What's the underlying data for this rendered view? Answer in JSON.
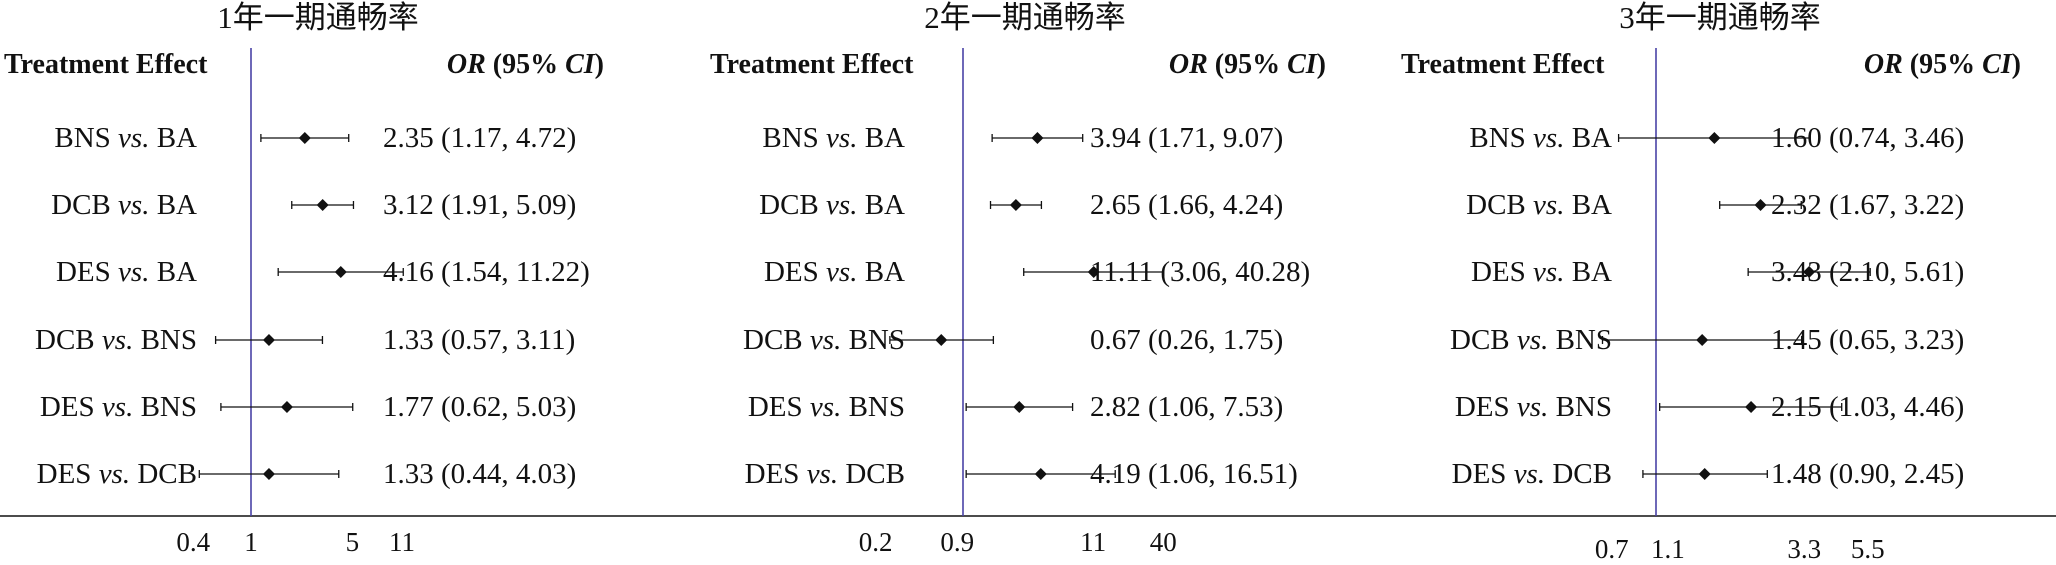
{
  "chart_data": [
    {
      "type": "forest",
      "title": "1年一期通畅率",
      "header_left": "Treatment Effect",
      "header_right": {
        "or": "OR",
        "mid": " (95% ",
        "ci": "CI",
        "end": ")"
      },
      "xscale": "log",
      "xticks": [
        {
          "value": 0.4,
          "label": "0.4"
        },
        {
          "value": 1,
          "label": "1"
        },
        {
          "value": 5,
          "label": "5"
        },
        {
          "value": 11,
          "label": "11"
        }
      ],
      "reference_line": 1,
      "rows": [
        {
          "a": "BNS",
          "b": "BA",
          "or": 2.35,
          "lo": 1.17,
          "hi": 4.72,
          "text": "2.35 (1.17, 4.72)"
        },
        {
          "a": "DCB",
          "b": "BA",
          "or": 3.12,
          "lo": 1.91,
          "hi": 5.09,
          "text": "3.12 (1.91, 5.09)"
        },
        {
          "a": "DES",
          "b": "BA",
          "or": 4.16,
          "lo": 1.54,
          "hi": 11.22,
          "text": "4.16 (1.54, 11.22)"
        },
        {
          "a": "DCB",
          "b": "BNS",
          "or": 1.33,
          "lo": 0.57,
          "hi": 3.11,
          "text": "1.33 (0.57, 3.11)"
        },
        {
          "a": "DES",
          "b": "BNS",
          "or": 1.77,
          "lo": 0.62,
          "hi": 5.03,
          "text": "1.77 (0.62, 5.03)"
        },
        {
          "a": "DES",
          "b": "DCB",
          "or": 1.33,
          "lo": 0.44,
          "hi": 4.03,
          "text": "1.33 (0.44, 4.03)"
        }
      ]
    },
    {
      "type": "forest",
      "title": "2年一期通畅率",
      "header_left": "Treatment Effect",
      "header_right": {
        "or": "OR",
        "mid": " (95% ",
        "ci": "CI",
        "end": ")"
      },
      "xscale": "log",
      "xticks": [
        {
          "value": 0.2,
          "label": "0.2"
        },
        {
          "value": 0.9,
          "label": "0.9"
        },
        {
          "value": 11,
          "label": "11"
        },
        {
          "value": 40,
          "label": "40"
        }
      ],
      "reference_line": 1,
      "rows": [
        {
          "a": "BNS",
          "b": "BA",
          "or": 3.94,
          "lo": 1.71,
          "hi": 9.07,
          "text": "3.94 (1.71, 9.07)"
        },
        {
          "a": "DCB",
          "b": "BA",
          "or": 2.65,
          "lo": 1.66,
          "hi": 4.24,
          "text": "2.65 (1.66, 4.24)"
        },
        {
          "a": "DES",
          "b": "BA",
          "or": 11.11,
          "lo": 3.06,
          "hi": 40.28,
          "text": "11.11 (3.06, 40.28)"
        },
        {
          "a": "DCB",
          "b": "BNS",
          "or": 0.67,
          "lo": 0.26,
          "hi": 1.75,
          "text": "0.67 (0.26, 1.75)"
        },
        {
          "a": "DES",
          "b": "BNS",
          "or": 2.82,
          "lo": 1.06,
          "hi": 7.53,
          "text": "2.82 (1.06, 7.53)"
        },
        {
          "a": "DES",
          "b": "DCB",
          "or": 4.19,
          "lo": 1.06,
          "hi": 16.51,
          "text": "4.19 (1.06, 16.51)"
        }
      ]
    },
    {
      "type": "forest",
      "title": "3年一期通畅率",
      "header_left": "Treatment Effect",
      "header_right": {
        "or": "OR",
        "mid": " (95% ",
        "ci": "CI",
        "end": ")"
      },
      "xscale": "log",
      "xticks": [
        {
          "value": 0.7,
          "label": "0.7"
        },
        {
          "value": 1.1,
          "label": "1.1"
        },
        {
          "value": 3.3,
          "label": "3.3"
        },
        {
          "value": 5.5,
          "label": "5.5"
        }
      ],
      "reference_line": 1,
      "rows": [
        {
          "a": "BNS",
          "b": "BA",
          "or": 1.6,
          "lo": 0.74,
          "hi": 3.46,
          "text": "1.60 (0.74, 3.46)"
        },
        {
          "a": "DCB",
          "b": "BA",
          "or": 2.32,
          "lo": 1.67,
          "hi": 3.22,
          "text": "2.32 (1.67, 3.22)"
        },
        {
          "a": "DES",
          "b": "BA",
          "or": 3.43,
          "lo": 2.1,
          "hi": 5.61,
          "text": "3.43 (2.10, 5.61)"
        },
        {
          "a": "DCB",
          "b": "BNS",
          "or": 1.45,
          "lo": 0.65,
          "hi": 3.23,
          "text": "1.45 (0.65, 3.23)"
        },
        {
          "a": "DES",
          "b": "BNS",
          "or": 2.15,
          "lo": 1.03,
          "hi": 4.46,
          "text": "2.15 (1.03, 4.46)"
        },
        {
          "a": "DES",
          "b": "DCB",
          "or": 1.48,
          "lo": 0.9,
          "hi": 2.45,
          "text": "1.48 (0.90, 2.45)"
        }
      ]
    }
  ],
  "vs_label": "vs.",
  "colors": {
    "reference_line": "#4a43a6",
    "marks": "#111111",
    "axis": "#111111"
  }
}
